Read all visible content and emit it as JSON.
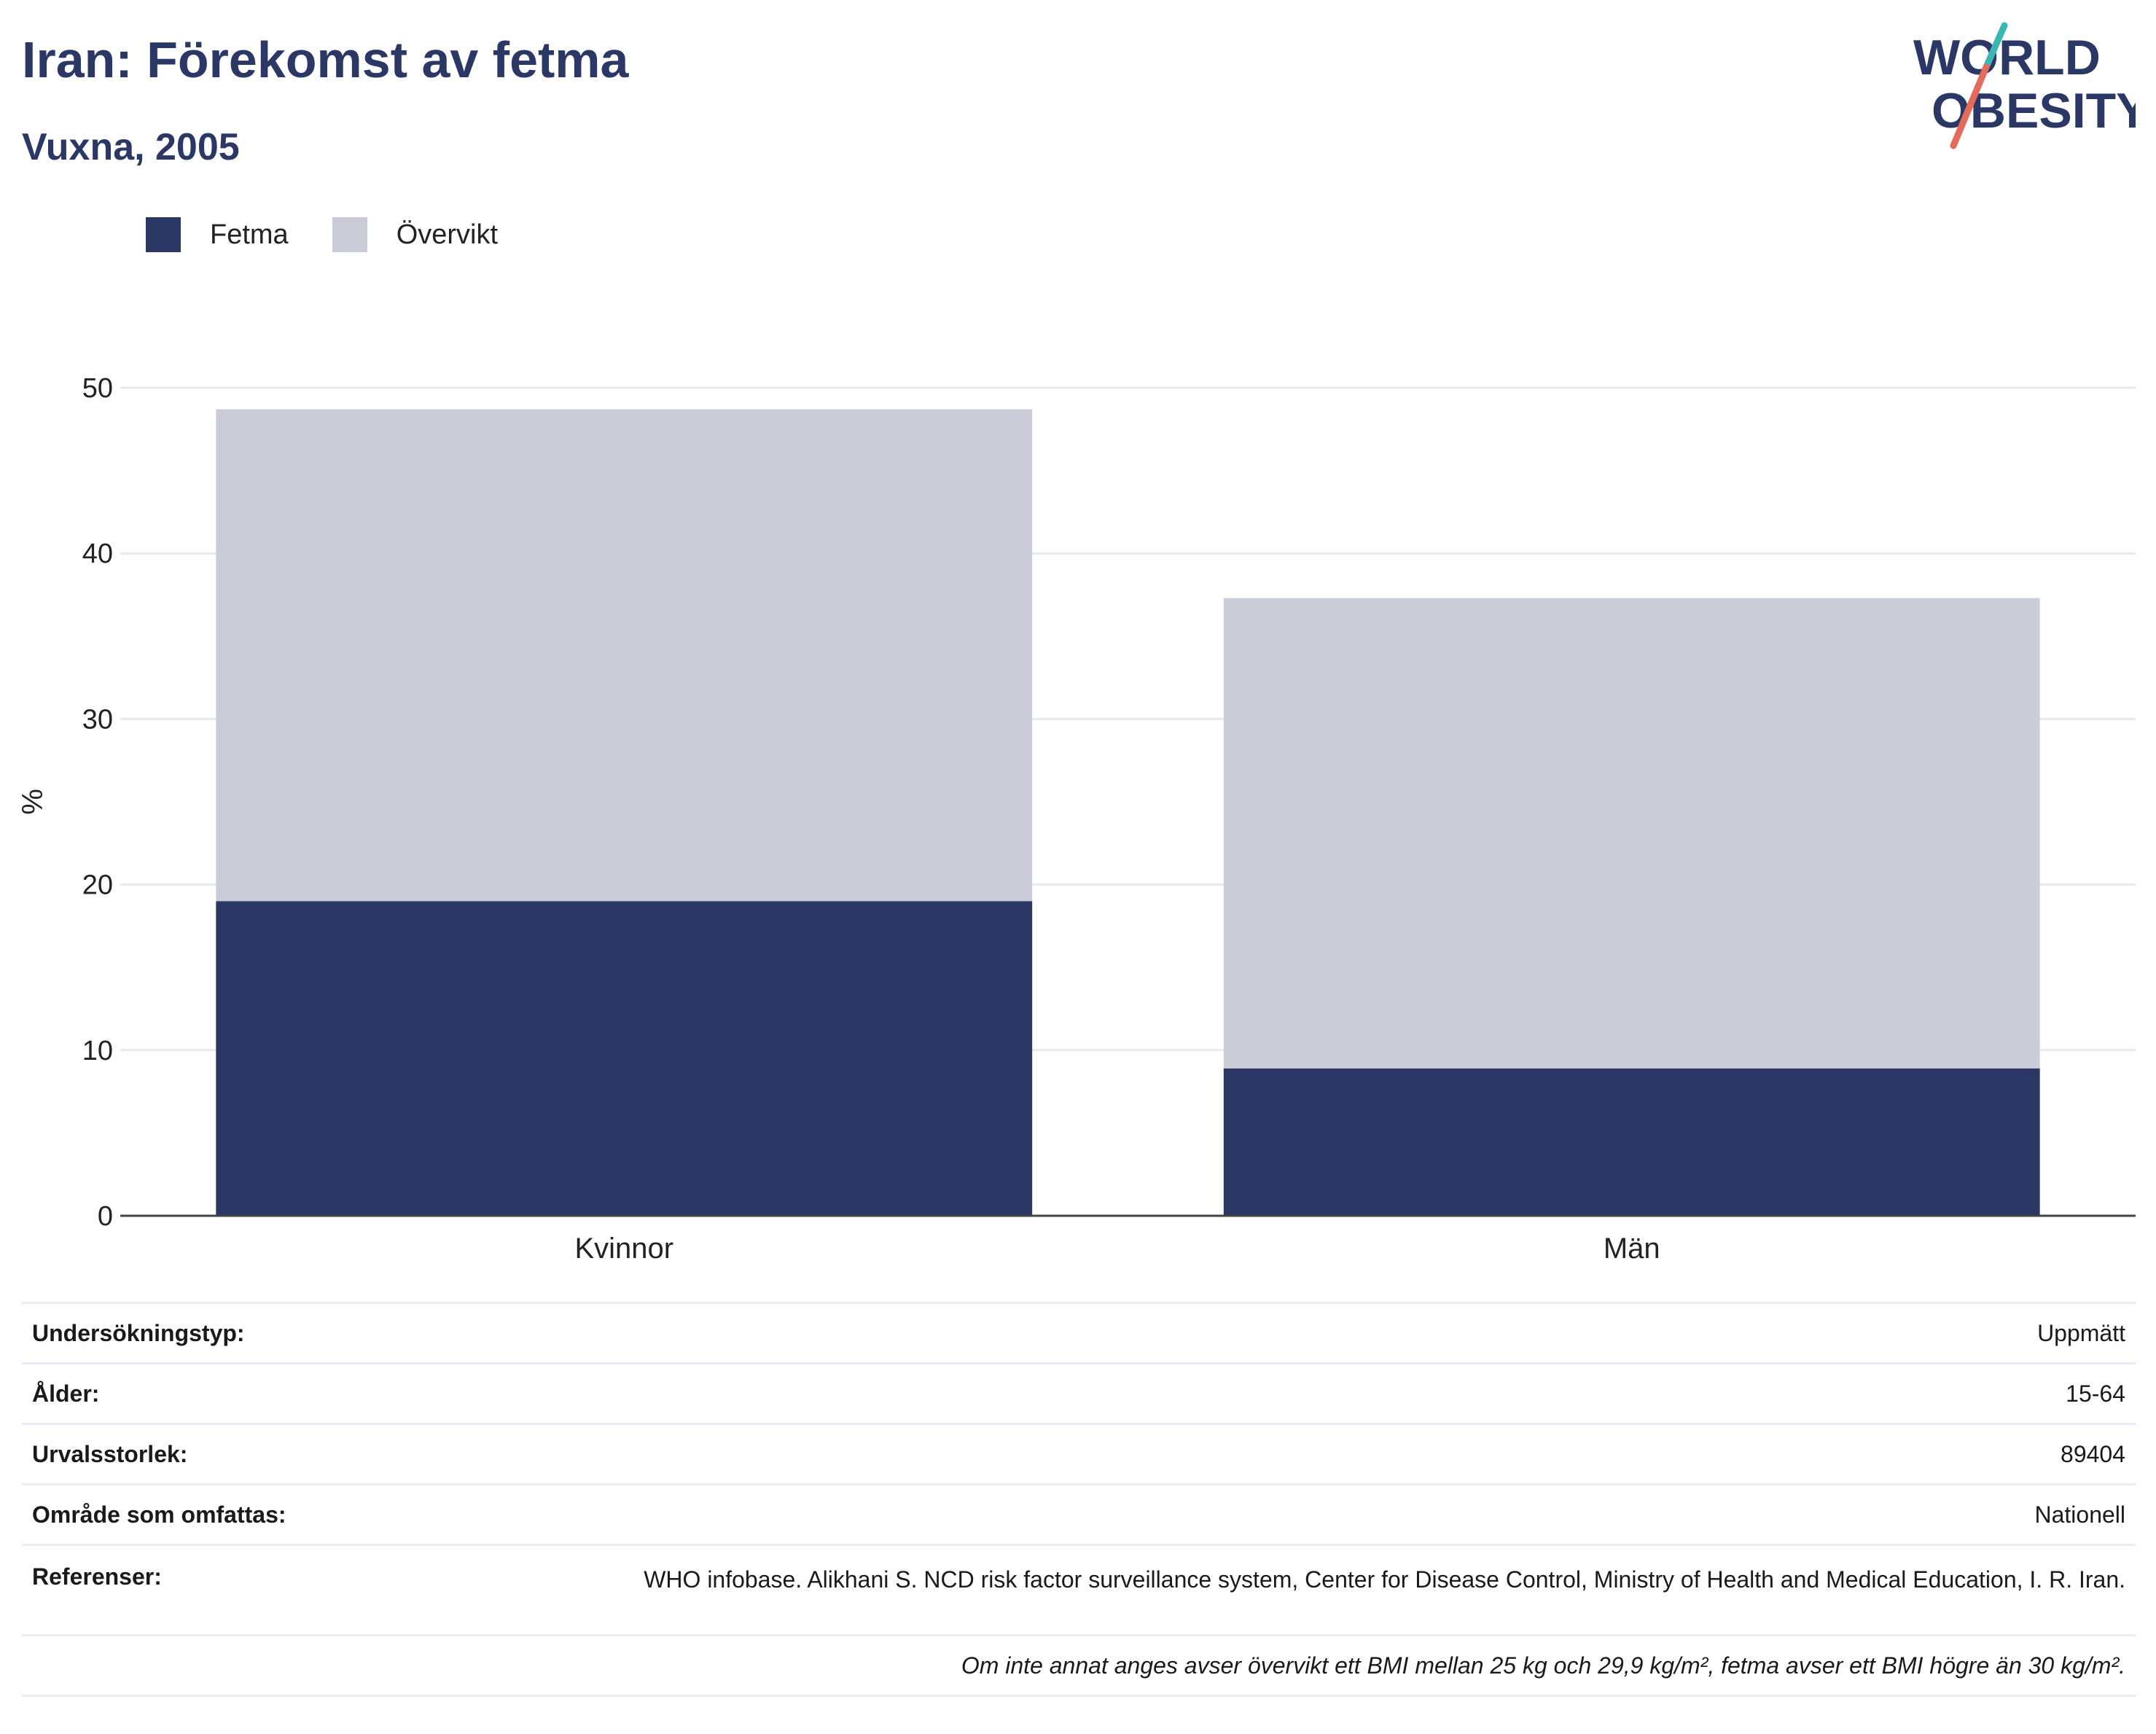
{
  "header": {
    "title": "Iran: Förekomst av fetma",
    "subtitle": "Vuxna, 2005"
  },
  "logo": {
    "line1": "WORLD",
    "line2": "OBESITY"
  },
  "colors": {
    "fetma": "#2b3764",
    "overvikt": "#cacdd8",
    "title": "#2b3764",
    "accent_teal": "#3bb7b3",
    "accent_coral": "#e26b5c"
  },
  "chart_data": {
    "type": "bar",
    "stacked": true,
    "categories": [
      "Kvinnor",
      "Män"
    ],
    "series": [
      {
        "name": "Fetma",
        "values": [
          19.0,
          8.9
        ]
      },
      {
        "name": "Övervikt",
        "values": [
          29.7,
          28.4
        ]
      }
    ],
    "ylabel": "%",
    "xlabel": "",
    "ylim": [
      0,
      50
    ],
    "yticks": [
      "0",
      "10",
      "20",
      "30",
      "40",
      "50"
    ],
    "grid": true,
    "legend_position": "top-left"
  },
  "info": {
    "rows": [
      {
        "label": "Undersökningstyp:",
        "value": "Uppmätt"
      },
      {
        "label": "Ålder:",
        "value": "15-64"
      },
      {
        "label": "Urvalsstorlek:",
        "value": "89404"
      },
      {
        "label": "Område som omfattas:",
        "value": "Nationell"
      },
      {
        "label": "Referenser:",
        "value": "WHO infobase. Alikhani S. NCD risk factor surveillance system, Center for Disease Control, Ministry of Health and Medical Education, I. R. Iran."
      }
    ],
    "note": "Om inte annat anges avser övervikt ett BMI mellan 25 kg och 29,9 kg/m², fetma avser ett BMI högre än 30 kg/m²."
  }
}
